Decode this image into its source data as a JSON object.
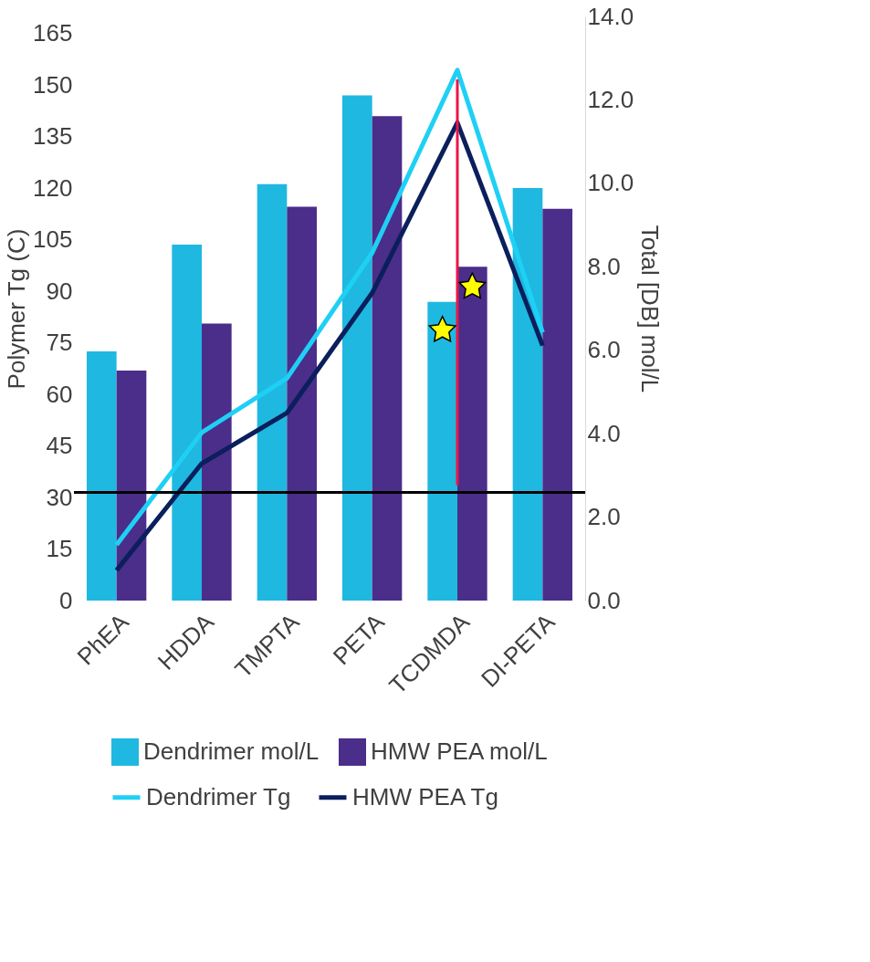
{
  "chart_data": {
    "type": "bar",
    "ylabel": "Polymer Tg  (C)",
    "y2label": "Total [DB]  mol/L",
    "categories": [
      "PhEA",
      "HDDA",
      "TMPTA",
      "PETA",
      "TCDMDA",
      "DI-PETA"
    ],
    "series": [
      {
        "name": "Dendrimer mol/L",
        "type": "bar",
        "axis": "y2",
        "color": "#1fb8e0",
        "values": [
          5.97,
          8.53,
          9.98,
          12.11,
          7.16,
          9.89
        ]
      },
      {
        "name": "HMW PEA mol/L",
        "type": "bar",
        "axis": "y2",
        "color": "#4b2d8a",
        "values": [
          5.51,
          6.64,
          9.44,
          11.61,
          8.0,
          9.39
        ]
      },
      {
        "name": "Dendrimer Tg",
        "type": "line",
        "axis": "y",
        "color": "#1fd0f5",
        "values": [
          16.2,
          48.9,
          64.7,
          101.2,
          154.4,
          78
        ]
      },
      {
        "name": "HMW PEA Tg",
        "type": "line",
        "axis": "y",
        "color": "#0a1f5c",
        "values": [
          8.8,
          39.9,
          54.6,
          89.5,
          139.1,
          74.2
        ]
      },
      {
        "type": "line",
        "axis": "y",
        "color": "#e8174a",
        "x": [
          "TCDMDA",
          "TCDMDA"
        ],
        "values": [
          151.7,
          33.6
        ]
      },
      {
        "type": "scatter",
        "axis": "y",
        "marker": "star",
        "color": "#ffff00",
        "x": [
          "TCDMDA",
          "TCDMDA"
        ],
        "values": [
          78.7,
          91.3
        ]
      }
    ],
    "ylim": [
      0,
      170
    ],
    "yticks": [
      0,
      15,
      30,
      45,
      60,
      75,
      90,
      105,
      120,
      135,
      150,
      165
    ],
    "y2lim": [
      0,
      14
    ],
    "y2ticks": [
      {
        "value": 0,
        "label": "0.0"
      },
      {
        "value": 2,
        "label": "2.0"
      },
      {
        "value": 4,
        "label": "4.0"
      },
      {
        "value": 6,
        "label": "6.0"
      },
      {
        "value": 8,
        "label": "8.0"
      },
      {
        "value": 10,
        "label": "10.0"
      },
      {
        "value": 12,
        "label": "12.0"
      },
      {
        "value": 14,
        "label": "14.0"
      }
    ],
    "ref_lines": [
      {
        "axis": "y",
        "value": 31.5,
        "color": "#000000"
      }
    ],
    "grid": false,
    "legend": "bottom"
  }
}
